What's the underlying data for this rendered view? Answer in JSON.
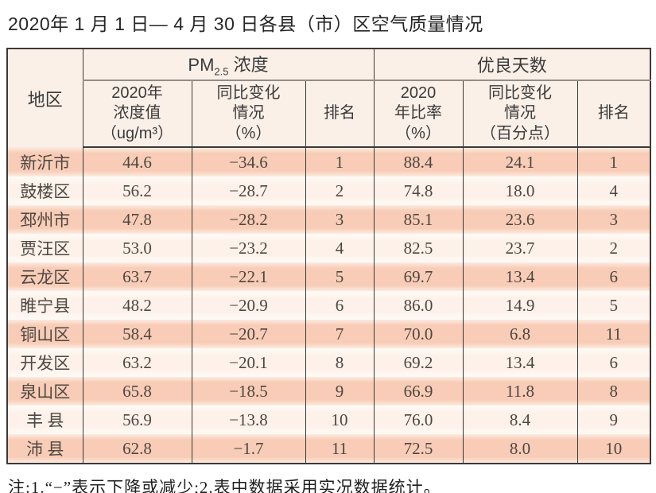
{
  "page": {
    "title": "2020年 1 月 1 日— 4 月 30 日各县（市）区空气质量情况",
    "note": "注:1.“−”表示下降或减少;2.表中数据采用实况数据统计。"
  },
  "table": {
    "region_header": "地区",
    "pm_group": {
      "text": "PM",
      "sub": "2.5",
      "rest": " 浓度"
    },
    "days_group": "优良天数",
    "sub_headers": {
      "pm_value": "2020年\n浓度值\n（ug/m³）",
      "pm_change": "同比变化\n情况\n（%）",
      "pm_rank": "排名",
      "days_ratio": "2020\n年比率\n（%）",
      "days_change": "同比变化\n情况\n（百分点）",
      "days_rank": "排名"
    },
    "row_keys": [
      "region",
      "pm_value",
      "pm_change",
      "pm_rank",
      "days_ratio",
      "days_change",
      "days_rank"
    ],
    "rows": [
      {
        "region": "新沂市",
        "pm_value": "44.6",
        "pm_change": "−34.6",
        "pm_rank": "1",
        "days_ratio": "88.4",
        "days_change": "24.1",
        "days_rank": "1"
      },
      {
        "region": "鼓楼区",
        "pm_value": "56.2",
        "pm_change": "−28.7",
        "pm_rank": "2",
        "days_ratio": "74.8",
        "days_change": "18.0",
        "days_rank": "4"
      },
      {
        "region": "邳州市",
        "pm_value": "47.8",
        "pm_change": "−28.2",
        "pm_rank": "3",
        "days_ratio": "85.1",
        "days_change": "23.6",
        "days_rank": "3"
      },
      {
        "region": "贾汪区",
        "pm_value": "53.0",
        "pm_change": "−23.2",
        "pm_rank": "4",
        "days_ratio": "82.5",
        "days_change": "23.7",
        "days_rank": "2"
      },
      {
        "region": "云龙区",
        "pm_value": "63.7",
        "pm_change": "−22.1",
        "pm_rank": "5",
        "days_ratio": "69.7",
        "days_change": "13.4",
        "days_rank": "6"
      },
      {
        "region": "睢宁县",
        "pm_value": "48.2",
        "pm_change": "−20.9",
        "pm_rank": "6",
        "days_ratio": "86.0",
        "days_change": "14.9",
        "days_rank": "5"
      },
      {
        "region": "铜山区",
        "pm_value": "58.4",
        "pm_change": "−20.7",
        "pm_rank": "7",
        "days_ratio": "70.0",
        "days_change": "6.8",
        "days_rank": "11"
      },
      {
        "region": "开发区",
        "pm_value": "63.2",
        "pm_change": "−20.1",
        "pm_rank": "8",
        "days_ratio": "69.2",
        "days_change": "13.4",
        "days_rank": "6"
      },
      {
        "region": "泉山区",
        "pm_value": "65.8",
        "pm_change": "−18.5",
        "pm_rank": "9",
        "days_ratio": "66.9",
        "days_change": "11.8",
        "days_rank": "8"
      },
      {
        "region": "丰 县",
        "pm_value": "56.9",
        "pm_change": "−13.8",
        "pm_rank": "10",
        "days_ratio": "76.0",
        "days_change": "8.4",
        "days_rank": "9"
      },
      {
        "region": "沛 县",
        "pm_value": "62.8",
        "pm_change": "−1.7",
        "pm_rank": "11",
        "days_ratio": "72.5",
        "days_change": "8.0",
        "days_rank": "10"
      }
    ],
    "colors": {
      "header_bg": "#fbf0e8",
      "row_salmon": "#f8ccb6",
      "row_cream": "#fdf1e9",
      "border": "#3c3937"
    }
  }
}
